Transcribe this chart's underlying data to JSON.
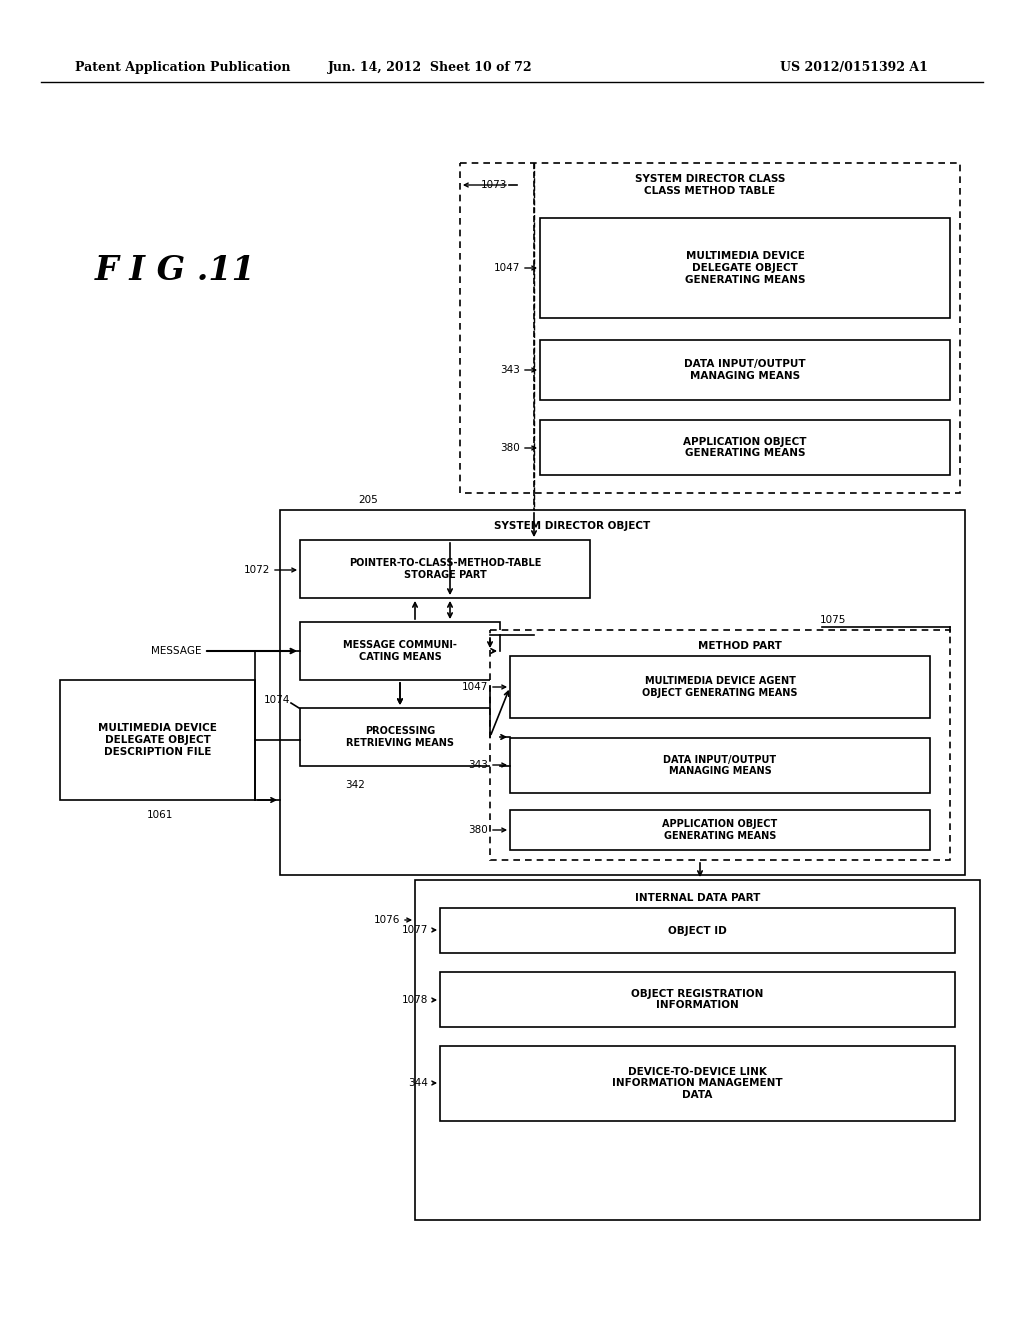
{
  "header_left": "Patent Application Publication",
  "header_mid": "Jun. 14, 2012  Sheet 10 of 72",
  "header_right": "US 2012/0151392 A1",
  "fig_label": "F I G .11",
  "bg_color": "#ffffff"
}
